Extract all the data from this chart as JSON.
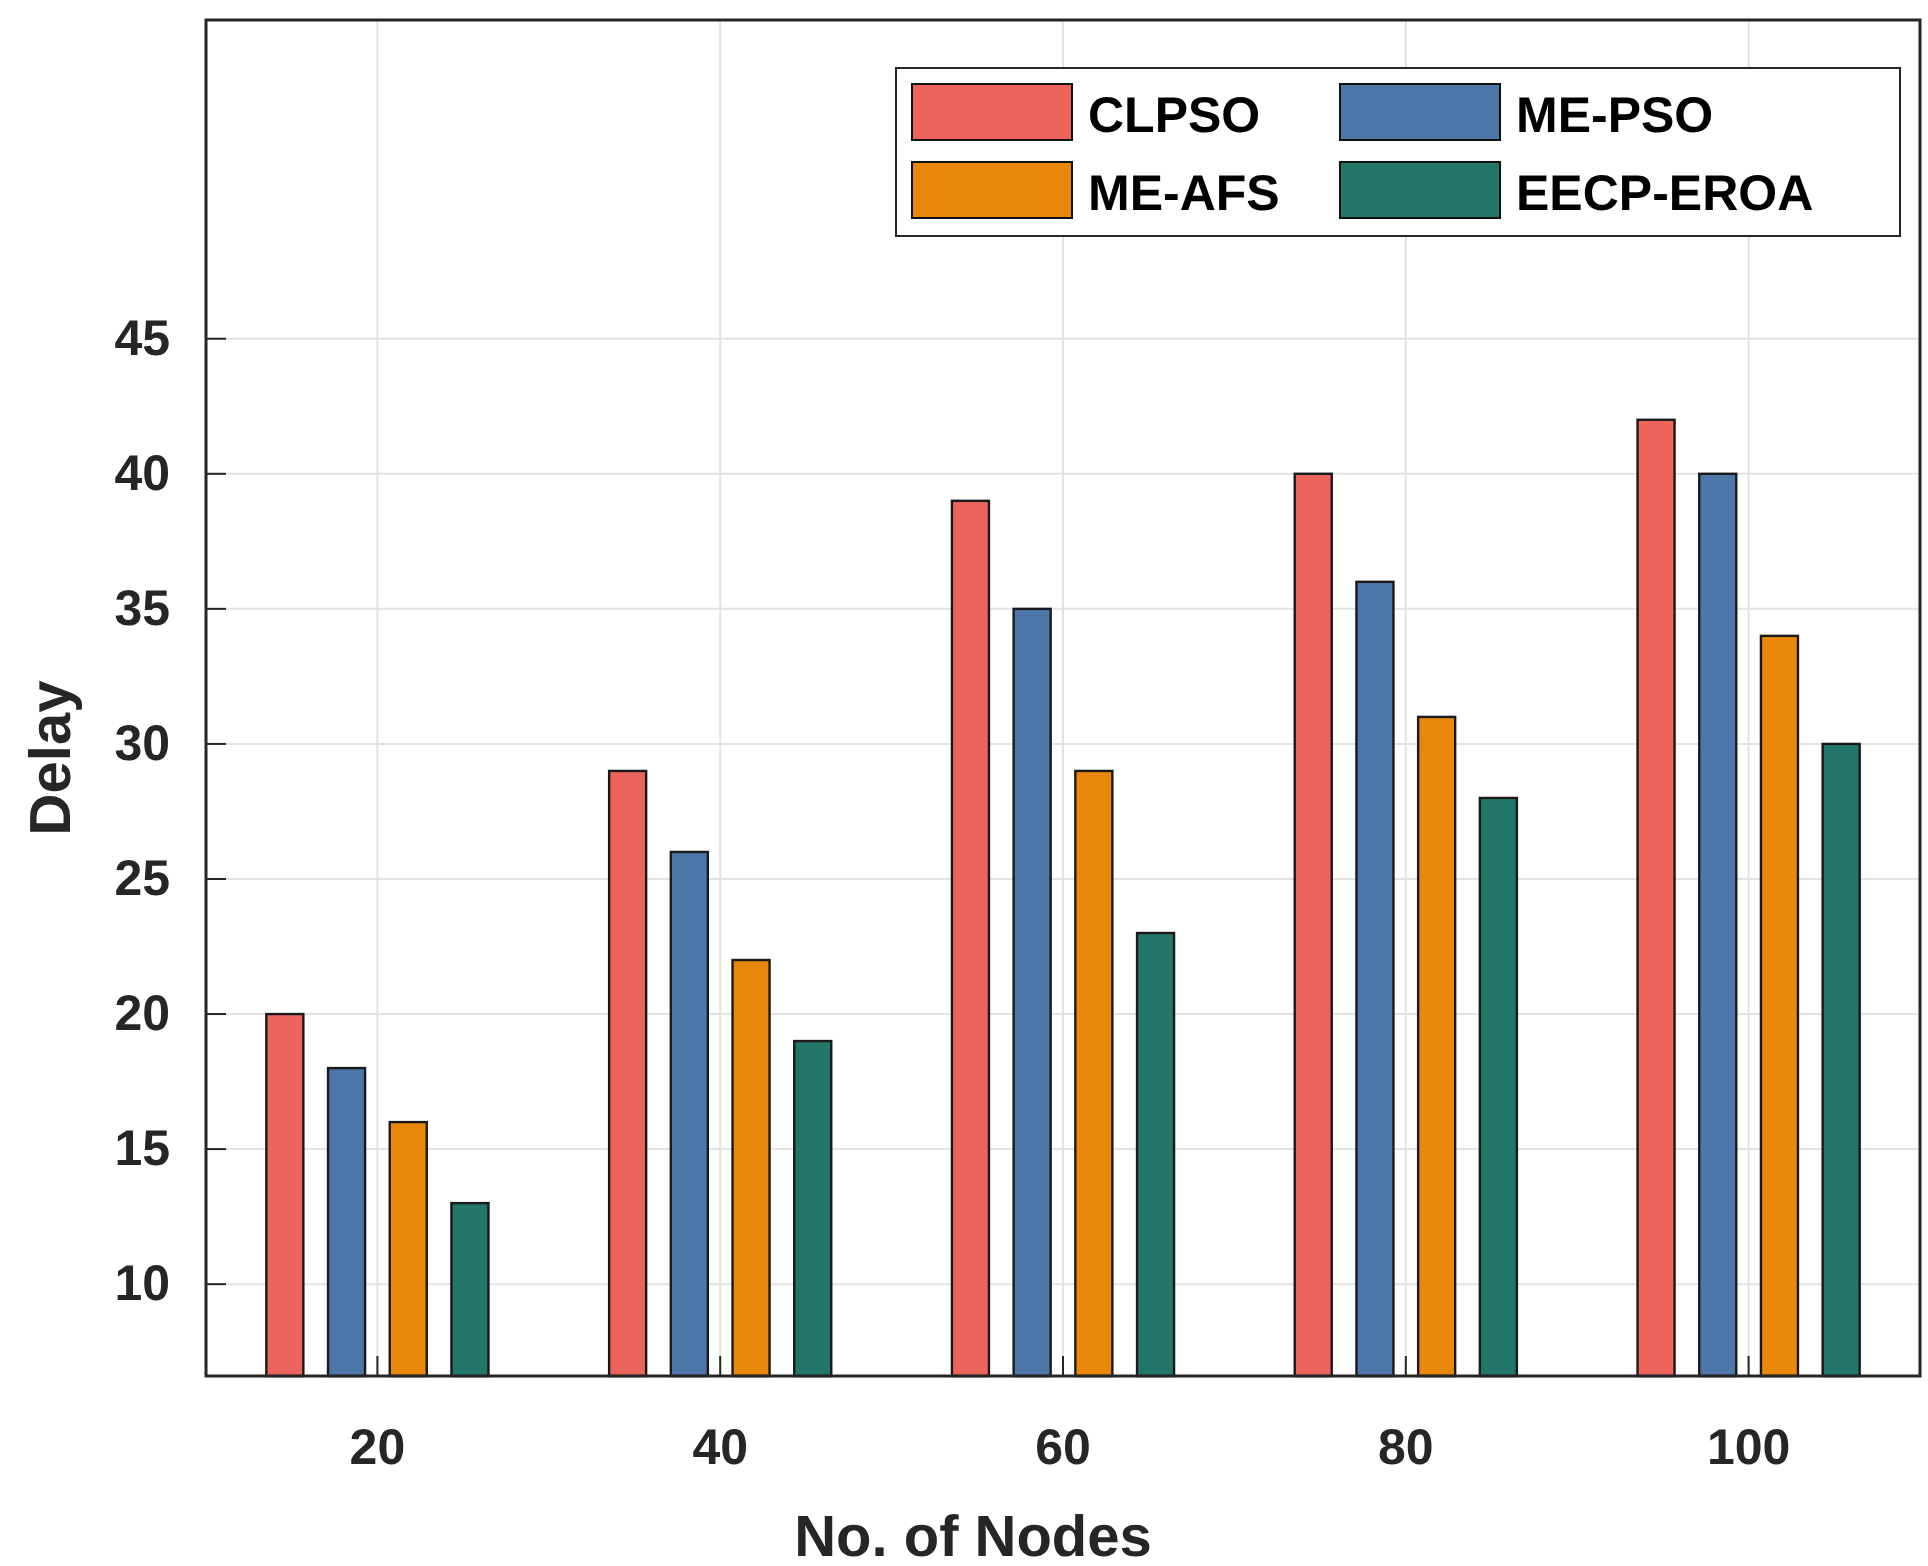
{
  "chart_data": {
    "type": "bar",
    "xlabel": "No. of Nodes",
    "ylabel": "Delay",
    "categories": [
      "20",
      "40",
      "60",
      "80",
      "100"
    ],
    "series": [
      {
        "name": "CLPSO",
        "color": "#ec645c",
        "values": [
          20,
          29,
          39,
          40,
          42
        ]
      },
      {
        "name": "ME-PSO",
        "color": "#4c77a8",
        "values": [
          18,
          26,
          35,
          36,
          40
        ]
      },
      {
        "name": "ME-AFS",
        "color": "#e8870a",
        "values": [
          16,
          22,
          29,
          31,
          34
        ]
      },
      {
        "name": "EECP-EROA",
        "color": "#23766a",
        "values": [
          13,
          19,
          23,
          28,
          30
        ]
      }
    ],
    "ylim": [
      6.6,
      56.8
    ],
    "yticks": [
      10,
      15,
      20,
      25,
      30,
      35,
      40,
      45
    ],
    "grid": true,
    "legend": "top right"
  }
}
